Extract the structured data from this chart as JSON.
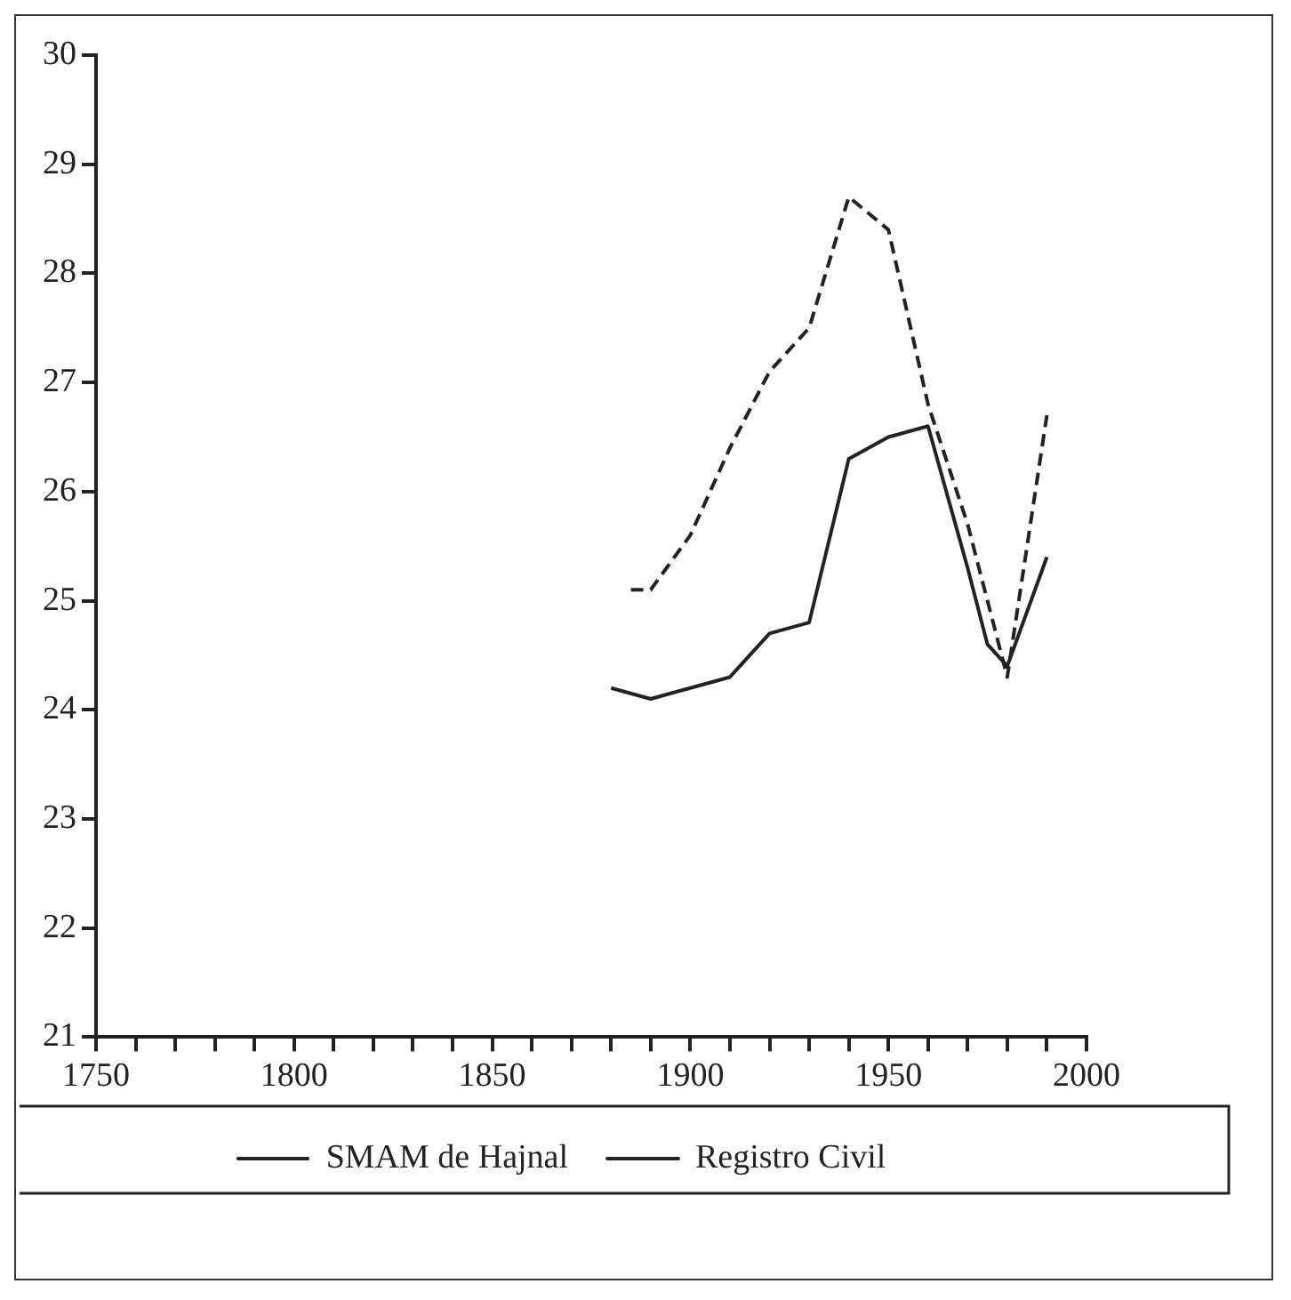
{
  "chart_data": {
    "type": "line",
    "series": [
      {
        "name": "SMAM de Hajnal",
        "color": "#222222",
        "line_style": "dashed",
        "x": [
          1885,
          1890,
          1900,
          1910,
          1920,
          1930,
          1940,
          1950,
          1960,
          1970,
          1980,
          1990
        ],
        "values": [
          25.1,
          25.1,
          25.6,
          26.4,
          27.1,
          27.5,
          28.7,
          28.4,
          26.8,
          25.7,
          24.3,
          26.7
        ]
      },
      {
        "name": "Registro Civil",
        "color": "#222222",
        "line_style": "solid",
        "x": [
          1880,
          1890,
          1900,
          1910,
          1920,
          1930,
          1940,
          1950,
          1960,
          1970,
          1975,
          1980,
          1990
        ],
        "values": [
          24.2,
          24.1,
          24.2,
          24.3,
          24.7,
          24.8,
          26.3,
          26.5,
          26.6,
          25.3,
          24.6,
          24.4,
          25.4
        ]
      }
    ],
    "xlim": [
      1750,
      2000
    ],
    "xticks": [
      1750,
      {
        "value": 1760,
        "label": null
      },
      {
        "value": 1770,
        "label": null
      },
      {
        "value": 1780,
        "label": null
      },
      {
        "value": 1790,
        "label": null
      },
      1800,
      {
        "value": 1810,
        "label": null
      },
      {
        "value": 1820,
        "label": null
      },
      {
        "value": 1830,
        "label": null
      },
      {
        "value": 1840,
        "label": null
      },
      1850,
      {
        "value": 1860,
        "label": null
      },
      {
        "value": 1870,
        "label": null
      },
      {
        "value": 1880,
        "label": null
      },
      {
        "value": 1890,
        "label": null
      },
      1900,
      {
        "value": 1910,
        "label": null
      },
      {
        "value": 1920,
        "label": null
      },
      {
        "value": 1930,
        "label": null
      },
      {
        "value": 1940,
        "label": null
      },
      1950,
      {
        "value": 1960,
        "label": null
      },
      {
        "value": 1970,
        "label": null
      },
      {
        "value": 1980,
        "label": null
      },
      {
        "value": 1990,
        "label": null
      },
      2000
    ],
    "ylim": [
      21,
      30
    ],
    "yticks": [
      21,
      22,
      23,
      24,
      25,
      26,
      27,
      28,
      29,
      30
    ],
    "grid": false,
    "legend": "bottom",
    "marker": "none"
  }
}
